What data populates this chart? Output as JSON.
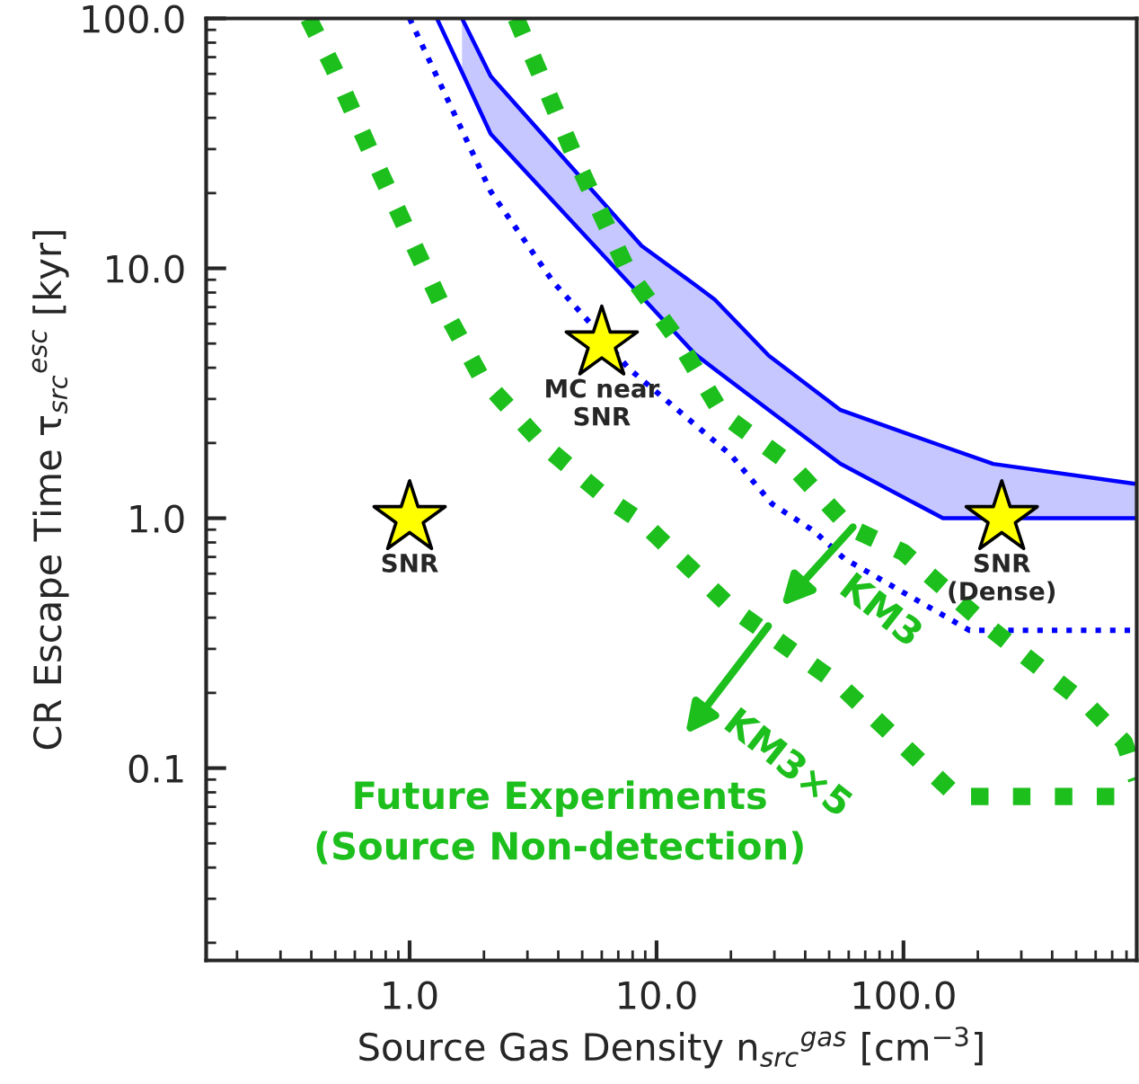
{
  "chart_data": {
    "type": "line",
    "xlabel": "Source Gas Density n$_{src}$$^{gas}$ [cm$^{−3}$]",
    "ylabel": "CR Escape Time τ$_{src}$$^{esc}$ [kyr]",
    "log": "xy",
    "xlim": [
      0.15,
      880
    ],
    "ylim": [
      0.017,
      100
    ],
    "xticks": [
      {
        "value": 1,
        "label": "1.0"
      },
      {
        "value": 10,
        "label": "10.0"
      },
      {
        "value": 100,
        "label": "100.0"
      }
    ],
    "yticks": [
      0.1,
      {
        "value": 1,
        "label": "1.0"
      },
      {
        "value": 10,
        "label": "10.0"
      },
      {
        "value": 100,
        "label": "100.0"
      }
    ],
    "grid": false,
    "legend": false,
    "series": [
      {
        "color": "#0000ff",
        "line_style": "solid",
        "x": [
          1.29,
          1.63,
          2.13,
          8.7,
          14.3,
          17.2,
          28.5,
          55.6,
          144.5,
          880
        ],
        "values": [
          100,
          61,
          34.5,
          7.7,
          4.54,
          3.95,
          2.71,
          1.65,
          1.0,
          1.0
        ]
      },
      {
        "color": "#0000ff",
        "line_style": "solid",
        "x": [
          1.63,
          2.13,
          8.7,
          14.3,
          17.2,
          28.5,
          55.6,
          144.5,
          231,
          880
        ],
        "values": [
          100,
          58.7,
          12.3,
          8.6,
          7.5,
          4.47,
          2.71,
          1.94,
          1.65,
          1.37
        ],
        "lower": [
          61,
          34.5,
          7.7,
          4.54,
          3.95,
          2.71,
          1.65,
          1.0,
          1.0,
          1.0
        ],
        "upper": [
          100,
          58.7,
          12.3,
          8.6,
          7.5,
          4.47,
          2.71,
          1.94,
          1.65,
          1.37
        ]
      },
      {
        "color": "#0000ff",
        "line_style": "dotted",
        "x": [
          1.0,
          2.13,
          3.81,
          6.0,
          7.7,
          20.0,
          29.4,
          43.3,
          57.5,
          185,
          880
        ],
        "values": [
          100,
          20.3,
          8.83,
          5.36,
          3.98,
          1.79,
          1.14,
          0.89,
          0.69,
          0.356,
          0.356
        ]
      },
      {
        "color": "#1cbf1c",
        "line_style": "dotted",
        "x": [
          2.7,
          3.45,
          4.67,
          7.7,
          12.3,
          18.4,
          34.8,
          60.4,
          100,
          219,
          569,
          783,
          880
        ],
        "values": [
          100,
          56.8,
          27.8,
          9.6,
          5.1,
          2.62,
          1.65,
          0.92,
          0.73,
          0.37,
          0.175,
          0.127,
          0.09
        ]
      },
      {
        "color": "#1cbf1c",
        "line_style": "dotted",
        "x": [
          0.39,
          0.41,
          0.49,
          0.68,
          0.95,
          1.33,
          1.95,
          3.45,
          6.3,
          8.7,
          20,
          54.7,
          126,
          165,
          880
        ],
        "values": [
          100,
          90.5,
          63.8,
          30.7,
          15.0,
          7.35,
          3.66,
          1.98,
          1.2,
          0.97,
          0.44,
          0.217,
          0.099,
          0.077,
          0.077
        ]
      },
      {
        "type": "scatter",
        "name": "SNR",
        "marker": "star",
        "color": "#ffff00",
        "x": [
          1
        ],
        "values": [
          1
        ]
      },
      {
        "type": "scatter",
        "name": "MC near\nSNR",
        "marker": "star",
        "color": "#ffff00",
        "x": [
          6
        ],
        "values": [
          5
        ]
      },
      {
        "type": "scatter",
        "name": "SNR\n(Dense)",
        "marker": "star",
        "color": "#ffff00",
        "x": [
          250
        ],
        "values": [
          1
        ]
      }
    ],
    "annotations": [
      "KM3",
      "KM3×5",
      "Future Experiments\n(Source Non-detection)"
    ]
  }
}
